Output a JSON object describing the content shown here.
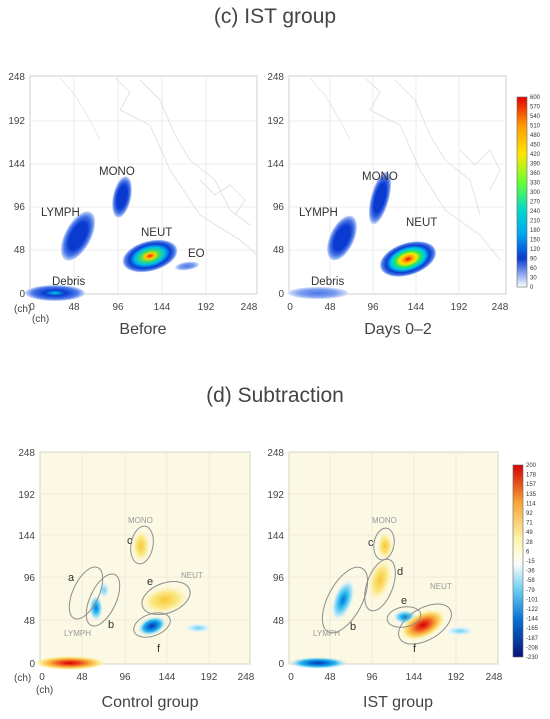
{
  "panels": {
    "c_title": "(c) IST group",
    "d_title": "(d) Subtraction"
  },
  "axis": {
    "unit": "(ch)",
    "ticks": [
      "0",
      "48",
      "96",
      "144",
      "192",
      "248"
    ]
  },
  "plots": [
    {
      "id": "before",
      "caption": "Before",
      "labels": {
        "lymph": "LYMPH",
        "mono": "MONO",
        "neut": "NEUT",
        "eo": "EO",
        "debris": "Debris"
      }
    },
    {
      "id": "days",
      "caption": "Days 0–2",
      "labels": {
        "lymph": "LYMPH",
        "mono": "MONO",
        "neut": "NEUT",
        "debris": "Debris"
      }
    },
    {
      "id": "control",
      "caption": "Control group",
      "labels": {
        "mono": "MONO",
        "neut": "NEUT",
        "lymph": "LYMPH"
      },
      "letters": [
        "a",
        "b",
        "c",
        "e",
        "f"
      ]
    },
    {
      "id": "ist",
      "caption": "IST group",
      "labels": {
        "mono": "MONO",
        "neut": "NEUT",
        "lymph": "LYMPH"
      },
      "letters": [
        "b",
        "c",
        "d",
        "e",
        "f"
      ]
    }
  ],
  "colorbar_c": {
    "ticks": [
      "600",
      "570",
      "540",
      "510",
      "480",
      "450",
      "420",
      "390",
      "360",
      "330",
      "300",
      "270",
      "240",
      "210",
      "180",
      "150",
      "120",
      "90",
      "60",
      "30",
      "0"
    ],
    "colors": [
      "#e60000",
      "#ff1a1a",
      "#ff4000",
      "#ff6a00",
      "#ff9a00",
      "#ffbd00",
      "#ffe600",
      "#f0ff00",
      "#b8ff00",
      "#66ff33",
      "#22e85a",
      "#00d296",
      "#00d6cc",
      "#00c8f0",
      "#00a8f0",
      "#0088e6",
      "#0060d8",
      "#0a3ad0",
      "#4a78e8",
      "#a8c0f4",
      "#ffffff"
    ]
  },
  "colorbar_d": {
    "ticks": [
      "200",
      "178",
      "157",
      "135",
      "114",
      "92",
      "71",
      "49",
      "28",
      "6",
      "-15",
      "-36",
      "-58",
      "-79",
      "-101",
      "-122",
      "-144",
      "-165",
      "-187",
      "-208",
      "-230"
    ],
    "colors": [
      "#d40000",
      "#e81e1e",
      "#f04a1e",
      "#f47a28",
      "#f8a838",
      "#fad25a",
      "#fbe784",
      "#fcf1a8",
      "#fdf6c4",
      "#fffde6",
      "#f6fbfd",
      "#d4f0fa",
      "#a8e3f6",
      "#6ccff0",
      "#2ab8ee",
      "#0596e8",
      "#0574d8",
      "#0654c6",
      "#0c34b0",
      "#0a1c92",
      "#081278"
    ]
  },
  "chart_data": [
    {
      "type": "heatmap",
      "title": "(c) IST group",
      "xlabel": "Before",
      "unit": "(ch)",
      "xlim": [
        0,
        248
      ],
      "ylim": [
        0,
        248
      ],
      "regions": [
        {
          "name": "LYMPH",
          "x": 55,
          "y": 62,
          "peak": 140
        },
        {
          "name": "MONO",
          "x": 110,
          "y": 102,
          "peak": 120
        },
        {
          "name": "NEUT",
          "x": 138,
          "y": 45,
          "peak": 330
        },
        {
          "name": "EO",
          "x": 180,
          "y": 30,
          "peak": 70
        },
        {
          "name": "Debris",
          "x": 30,
          "y": 3,
          "peak": 150
        }
      ]
    },
    {
      "type": "heatmap",
      "title": "(c) IST group",
      "xlabel": "Days 0–2",
      "unit": "(ch)",
      "xlim": [
        0,
        248
      ],
      "ylim": [
        0,
        248
      ],
      "regions": [
        {
          "name": "LYMPH",
          "x": 55,
          "y": 55,
          "peak": 130
        },
        {
          "name": "MONO",
          "x": 100,
          "y": 100,
          "peak": 120
        },
        {
          "name": "NEUT",
          "x": 130,
          "y": 42,
          "peak": 450
        },
        {
          "name": "Debris",
          "x": 25,
          "y": 3,
          "peak": 80
        }
      ]
    },
    {
      "type": "heatmap",
      "title": "(d) Subtraction",
      "xlabel": "Control group",
      "unit": "(ch)",
      "xlim": [
        0,
        248
      ],
      "ylim": [
        0,
        248
      ],
      "regions": [
        {
          "name": "a",
          "x": 50,
          "y": 76,
          "peak": -90
        },
        {
          "name": "b",
          "x": 70,
          "y": 62,
          "peak": -60
        },
        {
          "name": "c",
          "x": 110,
          "y": 138,
          "peak": 40
        },
        {
          "name": "e",
          "x": 143,
          "y": 75,
          "peak": 70
        },
        {
          "name": "f",
          "x": 124,
          "y": 43,
          "peak": -200
        }
      ]
    },
    {
      "type": "heatmap",
      "title": "(d) Subtraction",
      "xlabel": "IST group",
      "unit": "(ch)",
      "xlim": [
        0,
        248
      ],
      "ylim": [
        0,
        248
      ],
      "regions": [
        {
          "name": "b",
          "x": 50,
          "y": 65,
          "peak": -110
        },
        {
          "name": "c",
          "x": 105,
          "y": 138,
          "peak": 40
        },
        {
          "name": "d",
          "x": 95,
          "y": 96,
          "peak": 60
        },
        {
          "name": "e",
          "x": 120,
          "y": 50,
          "peak": -140
        },
        {
          "name": "f",
          "x": 140,
          "y": 42,
          "peak": 190
        }
      ]
    }
  ]
}
